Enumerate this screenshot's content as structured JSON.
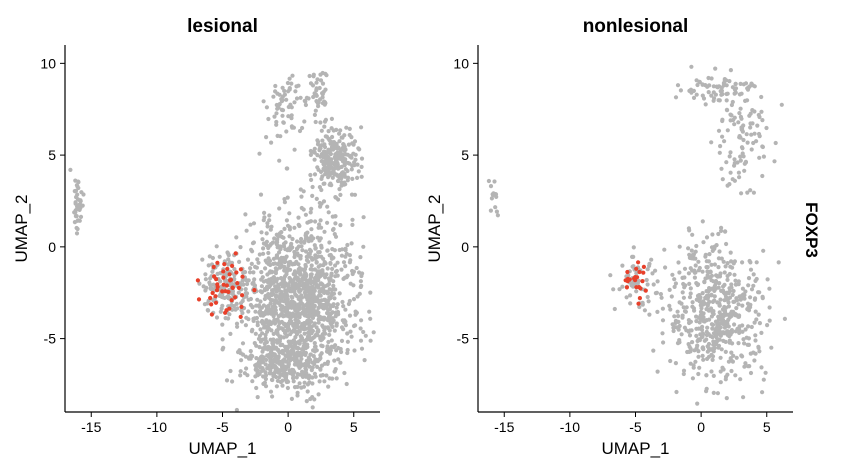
{
  "feature_label": "FOXP3",
  "colors": {
    "low": "#b4b4b4",
    "high": "#e8402a",
    "axis": "#000000"
  },
  "chart_data": [
    {
      "type": "scatter",
      "title": "lesional",
      "xlabel": "UMAP_1",
      "ylabel": "UMAP_2",
      "xlim": [
        -17,
        7
      ],
      "ylim": [
        -9,
        11
      ],
      "xticks": [
        -15,
        -10,
        -5,
        0,
        5
      ],
      "yticks": [
        -5,
        0,
        5,
        10
      ],
      "xtick_labels": [
        "-15",
        "-10",
        "-5",
        "0",
        "5"
      ],
      "ytick_labels": [
        "-5",
        "0",
        "5",
        "10"
      ],
      "clusters": [
        {
          "cx": -16.0,
          "cy": 2.3,
          "sx": 0.18,
          "sy": 0.9,
          "n": 40,
          "expr": 0
        },
        {
          "cx": -0.1,
          "cy": 7.4,
          "sx": 0.9,
          "sy": 1.1,
          "n": 70,
          "expr": 0
        },
        {
          "cx": 2.3,
          "cy": 8.4,
          "sx": 0.4,
          "sy": 0.7,
          "n": 40,
          "expr": 0
        },
        {
          "cx": 3.6,
          "cy": 4.7,
          "sx": 0.9,
          "sy": 0.9,
          "n": 240,
          "expr": 0
        },
        {
          "cx": 0.8,
          "cy": -3.0,
          "sx": 2.1,
          "sy": 2.2,
          "n": 1300,
          "expr": 0
        },
        {
          "cx": -0.3,
          "cy": -6.4,
          "sx": 1.6,
          "sy": 0.55,
          "n": 220,
          "expr": 0
        },
        {
          "cx": -4.6,
          "cy": -2.1,
          "sx": 1.0,
          "sy": 0.9,
          "n": 150,
          "expr": 0
        },
        {
          "cx": -4.7,
          "cy": -2.1,
          "sx": 0.9,
          "sy": 0.9,
          "n": 45,
          "expr": 1
        }
      ]
    },
    {
      "type": "scatter",
      "title": "nonlesional",
      "xlabel": "UMAP_1",
      "ylabel": "UMAP_2",
      "xlim": [
        -17,
        7
      ],
      "ylim": [
        -9,
        11
      ],
      "xticks": [
        -15,
        -10,
        -5,
        0,
        5
      ],
      "yticks": [
        -5,
        0,
        5,
        10
      ],
      "xtick_labels": [
        "-15",
        "-10",
        "-5",
        "0",
        "5"
      ],
      "ytick_labels": [
        "-5",
        "0",
        "5",
        "10"
      ],
      "clusters": [
        {
          "cx": -15.8,
          "cy": 2.8,
          "sx": 0.2,
          "sy": 0.5,
          "n": 14,
          "expr": 0
        },
        {
          "cx": 1.0,
          "cy": 8.6,
          "sx": 1.4,
          "sy": 0.4,
          "n": 70,
          "expr": 0
        },
        {
          "cx": 3.0,
          "cy": 6.0,
          "sx": 1.3,
          "sy": 1.3,
          "n": 90,
          "expr": 0
        },
        {
          "cx": 2.9,
          "cy": 3.8,
          "sx": 0.4,
          "sy": 0.6,
          "n": 12,
          "expr": 0
        },
        {
          "cx": 1.2,
          "cy": -3.8,
          "sx": 1.9,
          "sy": 1.7,
          "n": 520,
          "expr": 0
        },
        {
          "cx": 0.2,
          "cy": -0.6,
          "sx": 1.0,
          "sy": 0.8,
          "n": 40,
          "expr": 0
        },
        {
          "cx": -4.9,
          "cy": -2.0,
          "sx": 0.8,
          "sy": 0.7,
          "n": 60,
          "expr": 0
        },
        {
          "cx": -5.0,
          "cy": -1.9,
          "sx": 0.6,
          "sy": 0.6,
          "n": 22,
          "expr": 1
        }
      ]
    }
  ]
}
